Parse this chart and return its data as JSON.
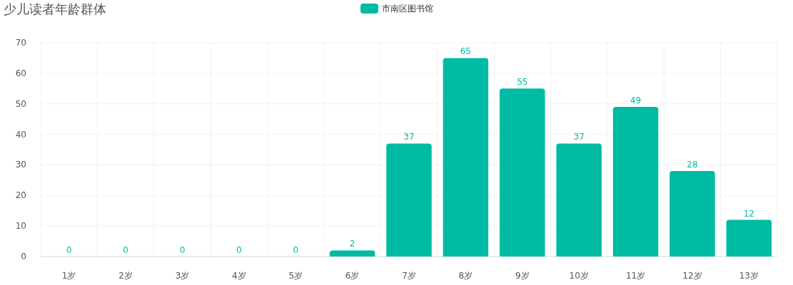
{
  "chart_data": {
    "type": "bar",
    "title": "少儿读者年龄群体",
    "categories": [
      "1岁",
      "2岁",
      "3岁",
      "4岁",
      "5岁",
      "6岁",
      "7岁",
      "8岁",
      "9岁",
      "10岁",
      "11岁",
      "12岁",
      "13岁"
    ],
    "series": [
      {
        "name": "市南区图书馆",
        "color": "#00bba3",
        "values": [
          0,
          0,
          0,
          0,
          0,
          2,
          37,
          65,
          55,
          37,
          49,
          28,
          12
        ]
      }
    ],
    "ylim": [
      0,
      70
    ],
    "yticks": [
      0,
      10,
      20,
      30,
      40,
      50,
      60,
      70
    ],
    "grid": true,
    "legend": "top",
    "data_labels": true
  }
}
